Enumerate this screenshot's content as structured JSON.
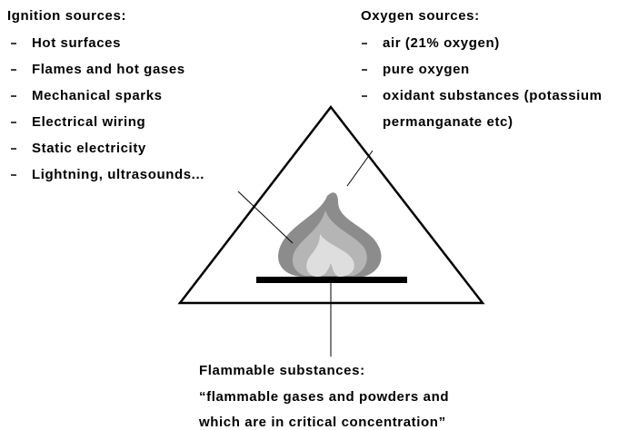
{
  "ignition": {
    "title": "Ignition sources:",
    "items": [
      "Hot surfaces",
      "Flames and hot gases",
      "Mechanical sparks",
      "Electrical wiring",
      "Static electricity",
      "Lightning, ultrasounds..."
    ]
  },
  "oxygen": {
    "title": "Oxygen sources:",
    "items": [
      {
        "lines": [
          "air (21% oxygen)"
        ]
      },
      {
        "lines": [
          "pure oxygen"
        ]
      },
      {
        "lines": [
          "oxidant substances (potassium",
          "permanganate etc)"
        ]
      }
    ]
  },
  "fuel": {
    "title": "Flammable substances:",
    "lines": [
      "“flammable gases and powders and",
      "which are in critical concentration”"
    ]
  }
}
